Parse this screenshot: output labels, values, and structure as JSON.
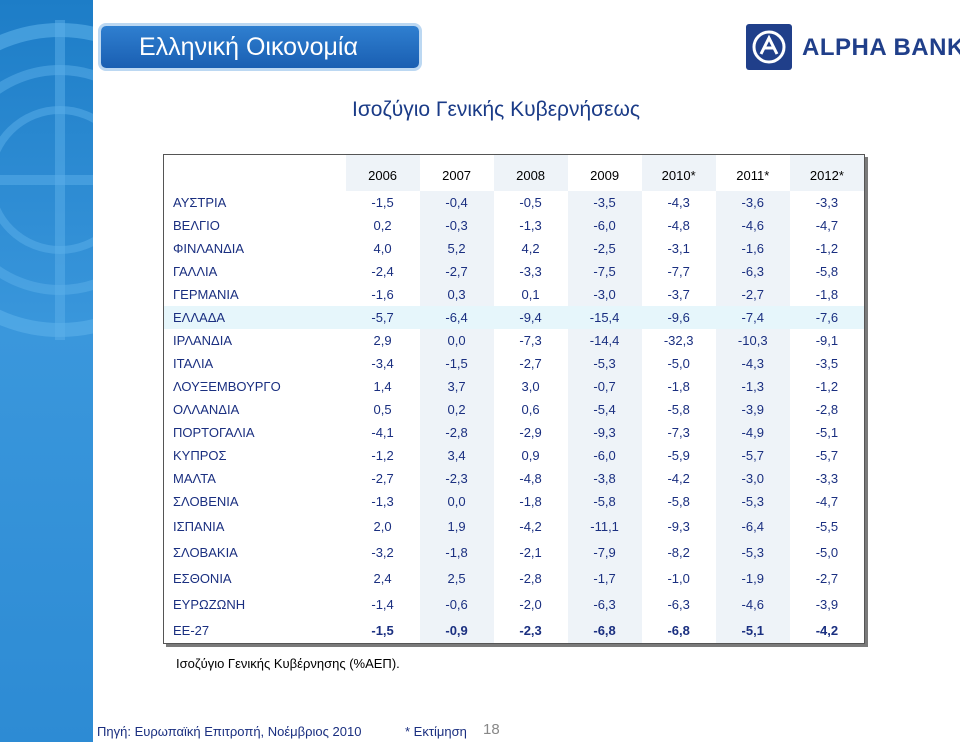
{
  "header": {
    "section_title": "Ελληνική Οικονομία",
    "brand": "ALPHA BANK"
  },
  "main": {
    "title": "Ισοζύγιο Γενικής Κυβερνήσεως"
  },
  "table": {
    "columns": [
      "",
      "2006",
      "2007",
      "2008",
      "2009",
      "2010*",
      "2011*",
      "2012*"
    ],
    "rows": [
      {
        "country": "ΑΥΣΤΡΙΑ",
        "values": [
          "-1,5",
          "-0,4",
          "-0,5",
          "-3,5",
          "-4,3",
          "-3,6",
          "-3,3"
        ]
      },
      {
        "country": "ΒΕΛΓΙΟ",
        "values": [
          "0,2",
          "-0,3",
          "-1,3",
          "-6,0",
          "-4,8",
          "-4,6",
          "-4,7"
        ]
      },
      {
        "country": "ΦΙΝΛΑΝΔΙΑ",
        "values": [
          "4,0",
          "5,2",
          "4,2",
          "-2,5",
          "-3,1",
          "-1,6",
          "-1,2"
        ]
      },
      {
        "country": "ΓΑΛΛΙΑ",
        "values": [
          "-2,4",
          "-2,7",
          "-3,3",
          "-7,5",
          "-7,7",
          "-6,3",
          "-5,8"
        ]
      },
      {
        "country": "ΓΕΡΜΑΝΙΑ",
        "values": [
          "-1,6",
          "0,3",
          "0,1",
          "-3,0",
          "-3,7",
          "-2,7",
          "-1,8"
        ]
      },
      {
        "country": "ΕΛΛΑΔΑ",
        "values": [
          "-5,7",
          "-6,4",
          "-9,4",
          "-15,4",
          "-9,6",
          "-7,4",
          "-7,6"
        ]
      },
      {
        "country": "ΙΡΛΑΝΔΙΑ",
        "values": [
          "2,9",
          "0,0",
          "-7,3",
          "-14,4",
          "-32,3",
          "-10,3",
          "-9,1"
        ]
      },
      {
        "country": "ΙΤΑΛΙΑ",
        "values": [
          "-3,4",
          "-1,5",
          "-2,7",
          "-5,3",
          "-5,0",
          "-4,3",
          "-3,5"
        ]
      },
      {
        "country": "ΛΟΥΞΕΜΒΟΥΡΓΟ",
        "values": [
          "1,4",
          "3,7",
          "3,0",
          "-0,7",
          "-1,8",
          "-1,3",
          "-1,2"
        ]
      },
      {
        "country": "ΟΛΛΑΝΔΙΑ",
        "values": [
          "0,5",
          "0,2",
          "0,6",
          "-5,4",
          "-5,8",
          "-3,9",
          "-2,8"
        ]
      },
      {
        "country": "ΠΟΡΤΟΓΑΛΙΑ",
        "values": [
          "-4,1",
          "-2,8",
          "-2,9",
          "-9,3",
          "-7,3",
          "-4,9",
          "-5,1"
        ]
      },
      {
        "country": "ΚΥΠΡΟΣ",
        "values": [
          "-1,2",
          "3,4",
          "0,9",
          "-6,0",
          "-5,9",
          "-5,7",
          "-5,7"
        ]
      },
      {
        "country": "ΜΑΛΤΑ",
        "values": [
          "-2,7",
          "-2,3",
          "-4,8",
          "-3,8",
          "-4,2",
          "-3,0",
          "-3,3"
        ]
      },
      {
        "country": "ΣΛΟΒΕΝΙΑ",
        "values": [
          "-1,3",
          "0,0",
          "-1,8",
          "-5,8",
          "-5,8",
          "-5,3",
          "-4,7"
        ]
      },
      {
        "country": "ΙΣΠΑΝΙΑ",
        "values": [
          "2,0",
          "1,9",
          "-4,2",
          "-11,1",
          "-9,3",
          "-6,4",
          "-5,5"
        ]
      },
      {
        "country": "ΣΛΟΒΑΚΙΑ",
        "values": [
          "-3,2",
          "-1,8",
          "-2,1",
          "-7,9",
          "-8,2",
          "-5,3",
          "-5,0"
        ]
      },
      {
        "country": "ΕΣΘΟΝΙΑ",
        "values": [
          "2,4",
          "2,5",
          "-2,8",
          "-1,7",
          "-1,0",
          "-1,9",
          "-2,7"
        ]
      },
      {
        "country": "ΕΥΡΩΖΩΝΗ",
        "values": [
          "-1,4",
          "-0,6",
          "-2,0",
          "-6,3",
          "-6,3",
          "-4,6",
          "-3,9"
        ]
      },
      {
        "country": "ΕΕ-27",
        "values": [
          "-1,5",
          "-0,9",
          "-2,3",
          "-6,8",
          "-6,8",
          "-5,1",
          "-4,2"
        ]
      }
    ]
  },
  "footer": {
    "note": "Ισοζύγιο Γενικής Κυβέρνησης (%ΑΕΠ).",
    "source": "Πηγή: Ευρωπαϊκή Επιτροπή, Νοέμβριος 2010",
    "estimate_note": "* Εκτίμηση",
    "page_number": "18"
  },
  "colors": {
    "sidebar": "#2d8bd4",
    "title_box": "#1a5fb2",
    "brand": "#203f8a",
    "table_text": "#1a2f80",
    "highlight_row": "#e6f6fb"
  }
}
